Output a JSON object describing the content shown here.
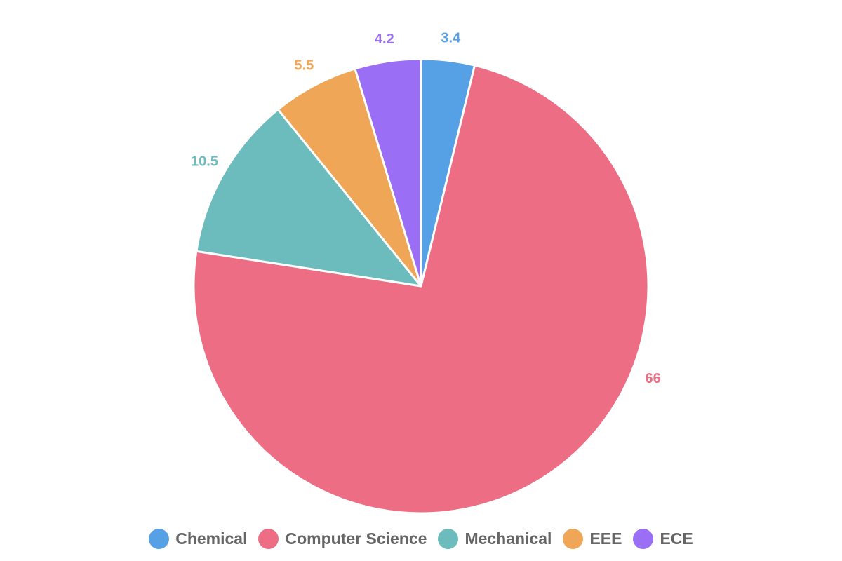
{
  "chart_data": {
    "type": "pie",
    "categories": [
      "Chemical",
      "Computer Science",
      "Mechanical",
      "EEE",
      "ECE"
    ],
    "values": [
      3.4,
      66,
      10.5,
      5.5,
      4.2
    ],
    "colors": [
      "#56a0e5",
      "#ec6d84",
      "#6cbcbd",
      "#efa657",
      "#9a6ef5"
    ],
    "data_labels": [
      "3.4",
      "66",
      "10.5",
      "5.5",
      "4.2"
    ],
    "legend": {
      "position": "bottom",
      "entries": [
        "Chemical",
        "Computer Science",
        "Mechanical",
        "EEE",
        "ECE"
      ]
    },
    "start_angle": "12 o'clock",
    "direction": "clockwise"
  }
}
